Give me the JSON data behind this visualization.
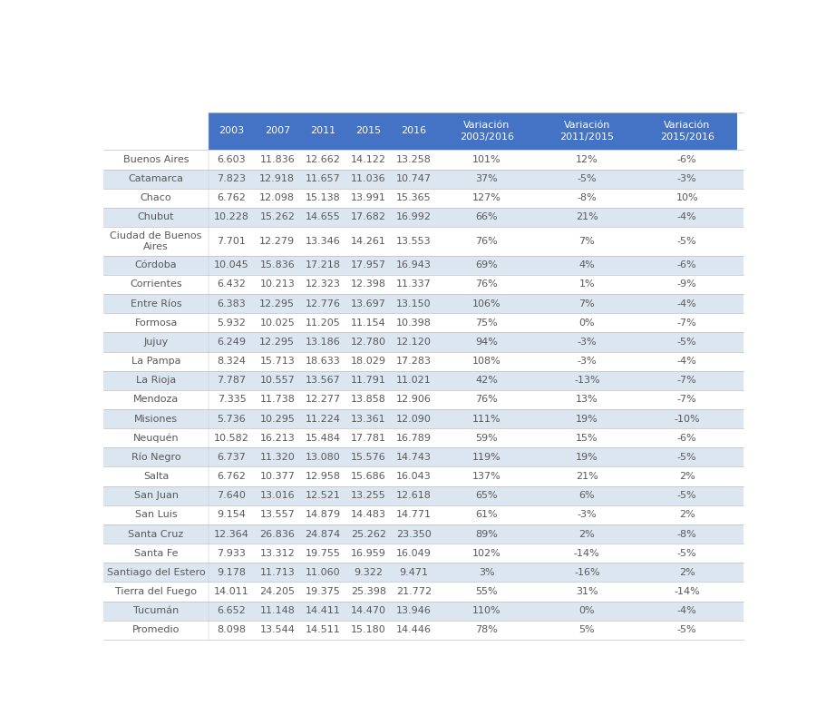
{
  "headers": [
    "2003",
    "2007",
    "2011",
    "2015",
    "2016",
    "Variación\n2003/2016",
    "Variación\n2011/2015",
    "Variación\n2015/2016"
  ],
  "provinces": [
    "Buenos Aires",
    "Catamarca",
    "Chaco",
    "Chubut",
    "Ciudad de Buenos\nAires",
    "Córdoba",
    "Corrientes",
    "Entre Ríos",
    "Formosa",
    "Jujuy",
    "La Pampa",
    "La Rioja",
    "Mendoza",
    "Misiones",
    "Neuquén",
    "Río Negro",
    "Salta",
    "San Juan",
    "San Luis",
    "Santa Cruz",
    "Santa Fe",
    "Santiago del Estero",
    "Tierra del Fuego",
    "Tucumán",
    "Promedio"
  ],
  "data": [
    [
      6.603,
      11.836,
      12.662,
      14.122,
      13.258,
      "101%",
      "12%",
      "-6%"
    ],
    [
      7.823,
      12.918,
      11.657,
      11.036,
      10.747,
      "37%",
      "-5%",
      "-3%"
    ],
    [
      6.762,
      12.098,
      15.138,
      13.991,
      15.365,
      "127%",
      "-8%",
      "10%"
    ],
    [
      10.228,
      15.262,
      14.655,
      17.682,
      16.992,
      "66%",
      "21%",
      "-4%"
    ],
    [
      7.701,
      12.279,
      13.346,
      14.261,
      13.553,
      "76%",
      "7%",
      "-5%"
    ],
    [
      10.045,
      15.836,
      17.218,
      17.957,
      16.943,
      "69%",
      "4%",
      "-6%"
    ],
    [
      6.432,
      10.213,
      12.323,
      12.398,
      11.337,
      "76%",
      "1%",
      "-9%"
    ],
    [
      6.383,
      12.295,
      12.776,
      13.697,
      13.15,
      "106%",
      "7%",
      "-4%"
    ],
    [
      5.932,
      10.025,
      11.205,
      11.154,
      10.398,
      "75%",
      "0%",
      "-7%"
    ],
    [
      6.249,
      12.295,
      13.186,
      12.78,
      12.12,
      "94%",
      "-3%",
      "-5%"
    ],
    [
      8.324,
      15.713,
      18.633,
      18.029,
      17.283,
      "108%",
      "-3%",
      "-4%"
    ],
    [
      7.787,
      10.557,
      13.567,
      11.791,
      11.021,
      "42%",
      "-13%",
      "-7%"
    ],
    [
      7.335,
      11.738,
      12.277,
      13.858,
      12.906,
      "76%",
      "13%",
      "-7%"
    ],
    [
      5.736,
      10.295,
      11.224,
      13.361,
      12.09,
      "111%",
      "19%",
      "-10%"
    ],
    [
      10.582,
      16.213,
      15.484,
      17.781,
      16.789,
      "59%",
      "15%",
      "-6%"
    ],
    [
      6.737,
      11.32,
      13.08,
      15.576,
      14.743,
      "119%",
      "19%",
      "-5%"
    ],
    [
      6.762,
      10.377,
      12.958,
      15.686,
      16.043,
      "137%",
      "21%",
      "2%"
    ],
    [
      7.64,
      13.016,
      12.521,
      13.255,
      12.618,
      "65%",
      "6%",
      "-5%"
    ],
    [
      9.154,
      13.557,
      14.879,
      14.483,
      14.771,
      "61%",
      "-3%",
      "2%"
    ],
    [
      12.364,
      26.836,
      24.874,
      25.262,
      23.35,
      "89%",
      "2%",
      "-8%"
    ],
    [
      7.933,
      13.312,
      19.755,
      16.959,
      16.049,
      "102%",
      "-14%",
      "-5%"
    ],
    [
      9.178,
      11.713,
      11.06,
      9.322,
      9.471,
      "3%",
      "-16%",
      "2%"
    ],
    [
      14.011,
      24.205,
      19.375,
      25.398,
      21.772,
      "55%",
      "31%",
      "-14%"
    ],
    [
      6.652,
      11.148,
      14.411,
      14.47,
      13.946,
      "110%",
      "0%",
      "-4%"
    ],
    [
      8.098,
      13.544,
      14.511,
      15.18,
      14.446,
      "78%",
      "5%",
      "-5%"
    ]
  ],
  "header_bg": "#4472c4",
  "header_text": "#ffffff",
  "row_bg_even": "#dce6f1",
  "row_bg_odd": "#ffffff",
  "province_text": "#595959",
  "data_text": "#595959",
  "background": "#ffffff",
  "fig_width": 9.11,
  "fig_height": 7.99
}
